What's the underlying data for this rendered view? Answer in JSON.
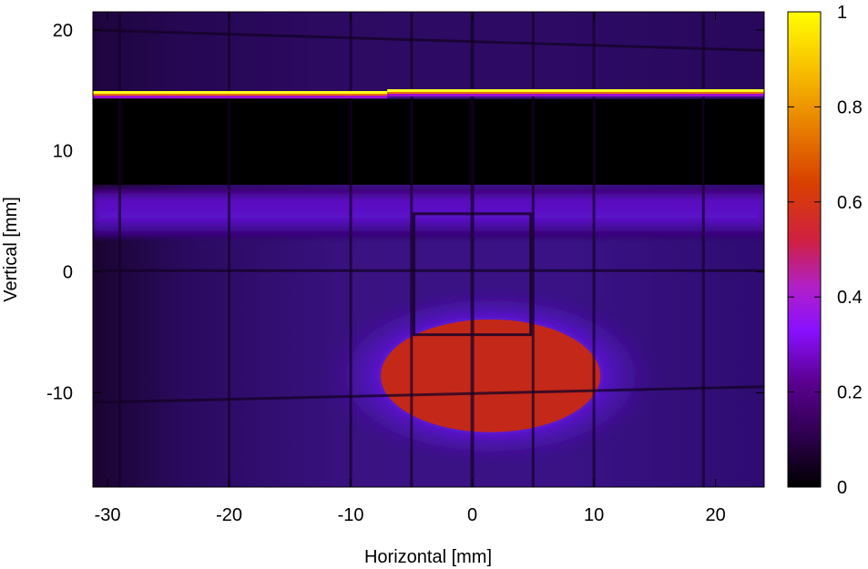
{
  "chart_data": {
    "type": "heatmap",
    "title": "",
    "xlabel": "Horizontal [mm]",
    "ylabel": "Vertical [mm]",
    "xlim": [
      -31.2,
      24.0
    ],
    "ylim": [
      -17.8,
      21.5
    ],
    "x_ticks": [
      -30,
      -20,
      -10,
      0,
      10,
      20
    ],
    "y_ticks": [
      -10,
      0,
      10,
      20
    ],
    "colorbar": {
      "range": [
        0,
        1
      ],
      "ticks": [
        0,
        0.2,
        0.4,
        0.6,
        0.8,
        1
      ],
      "colormap": [
        "#000000",
        "#2a0048",
        "#5a0090",
        "#8a10ff",
        "#b020c8",
        "#d02040",
        "#d84000",
        "#e88000",
        "#f8c000",
        "#ffff00"
      ]
    },
    "features": {
      "bright_line": {
        "y": 14.8,
        "x_range": [
          -31.2,
          24.0
        ],
        "value": 1.0
      },
      "dark_band": {
        "y_range": [
          7.2,
          14.3
        ],
        "value": 0.0
      },
      "halo_band": {
        "y_range": [
          2.8,
          6.9
        ],
        "value": 0.22
      },
      "background_value": 0.1,
      "beam_spot": {
        "center": [
          1.5,
          -8.6
        ],
        "radius_x": 10.5,
        "radius_y": 5.3,
        "value": 0.55
      },
      "grid_wire_x": [
        -29,
        -20,
        -10,
        -5,
        0,
        5,
        10,
        19
      ],
      "frame_rect": {
        "x_range": [
          -4.8,
          4.8
        ],
        "y_range": [
          -5.2,
          4.8
        ]
      }
    }
  }
}
